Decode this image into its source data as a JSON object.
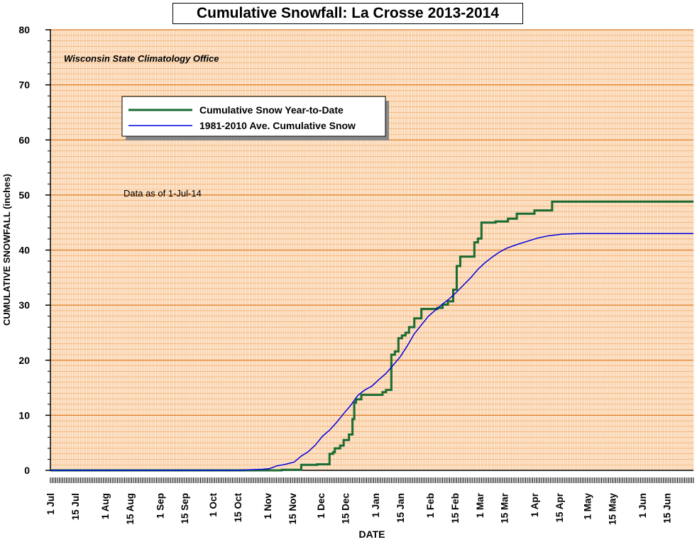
{
  "chart_data": {
    "type": "line",
    "title": "Cumulative Snowfall: La Crosse 2013-2014",
    "subtitle": "Wisconsin State Climatology Office",
    "annotation": "Data as of 1-Jul-14",
    "xlabel": "DATE",
    "ylabel": "CUMULATIVE SNOWFALL (inches)",
    "ylim": [
      0,
      80
    ],
    "y_ticks": [
      0,
      10,
      20,
      30,
      40,
      50,
      60,
      70,
      80
    ],
    "x_range_days": [
      0,
      364
    ],
    "x_ticks": [
      {
        "day": 0,
        "label": "1 Jul"
      },
      {
        "day": 14,
        "label": "15 Jul"
      },
      {
        "day": 31,
        "label": "1 Aug"
      },
      {
        "day": 45,
        "label": "15 Aug"
      },
      {
        "day": 62,
        "label": "1 Sep"
      },
      {
        "day": 76,
        "label": "15 Sep"
      },
      {
        "day": 92,
        "label": "1 Oct"
      },
      {
        "day": 106,
        "label": "15 Oct"
      },
      {
        "day": 123,
        "label": "1 Nov"
      },
      {
        "day": 137,
        "label": "15 Nov"
      },
      {
        "day": 153,
        "label": "1 Dec"
      },
      {
        "day": 167,
        "label": "15 Dec"
      },
      {
        "day": 184,
        "label": "1 Jan"
      },
      {
        "day": 198,
        "label": "15 Jan"
      },
      {
        "day": 215,
        "label": "1 Feb"
      },
      {
        "day": 229,
        "label": "15 Feb"
      },
      {
        "day": 243,
        "label": "1 Mar"
      },
      {
        "day": 257,
        "label": "15 Mar"
      },
      {
        "day": 274,
        "label": "1 Apr"
      },
      {
        "day": 288,
        "label": "15 Apr"
      },
      {
        "day": 304,
        "label": "1 May"
      },
      {
        "day": 318,
        "label": "15 May"
      },
      {
        "day": 335,
        "label": "1 Jun"
      },
      {
        "day": 349,
        "label": "15 Jun"
      }
    ],
    "grid": true,
    "legend_position": "upper-left",
    "series": [
      {
        "name": "Cumulative Snow Year-to-Date",
        "color": "#1a6b32",
        "step": true,
        "points": [
          [
            0,
            0
          ],
          [
            131,
            0
          ],
          [
            131,
            0.1
          ],
          [
            142,
            0.1
          ],
          [
            142,
            1
          ],
          [
            151,
            1
          ],
          [
            151,
            1.1
          ],
          [
            158,
            1.1
          ],
          [
            158,
            3
          ],
          [
            160,
            3
          ],
          [
            160,
            3.3
          ],
          [
            161,
            3.3
          ],
          [
            161,
            4
          ],
          [
            164,
            4
          ],
          [
            164,
            4.5
          ],
          [
            166,
            4.5
          ],
          [
            166,
            5.5
          ],
          [
            169,
            5.5
          ],
          [
            169,
            6.5
          ],
          [
            171,
            6.5
          ],
          [
            171,
            9.3
          ],
          [
            172,
            9.3
          ],
          [
            172,
            12.3
          ],
          [
            173,
            12.3
          ],
          [
            173,
            12.9
          ],
          [
            176,
            12.9
          ],
          [
            176,
            13.7
          ],
          [
            188,
            13.7
          ],
          [
            188,
            14.2
          ],
          [
            190,
            14.2
          ],
          [
            190,
            14.6
          ],
          [
            193,
            14.6
          ],
          [
            193,
            21
          ],
          [
            195,
            21
          ],
          [
            195,
            21.6
          ],
          [
            197,
            21.6
          ],
          [
            197,
            24
          ],
          [
            199,
            24
          ],
          [
            199,
            24.5
          ],
          [
            201,
            24.5
          ],
          [
            201,
            25
          ],
          [
            203,
            25
          ],
          [
            203,
            26
          ],
          [
            206,
            26
          ],
          [
            206,
            27.6
          ],
          [
            210,
            27.6
          ],
          [
            210,
            29.3
          ],
          [
            219,
            29.3
          ],
          [
            219,
            29.5
          ],
          [
            222,
            29.5
          ],
          [
            222,
            30.1
          ],
          [
            225,
            30.1
          ],
          [
            225,
            30.7
          ],
          [
            228,
            30.7
          ],
          [
            228,
            32.8
          ],
          [
            230,
            32.8
          ],
          [
            230,
            37.1
          ],
          [
            232,
            37.1
          ],
          [
            232,
            38.8
          ],
          [
            240,
            38.8
          ],
          [
            240,
            41.4
          ],
          [
            242,
            41.4
          ],
          [
            242,
            42.1
          ],
          [
            244,
            42.1
          ],
          [
            244,
            45
          ],
          [
            252,
            45
          ],
          [
            252,
            45.2
          ],
          [
            259,
            45.2
          ],
          [
            259,
            45.7
          ],
          [
            264,
            45.7
          ],
          [
            264,
            46.6
          ],
          [
            274,
            46.6
          ],
          [
            274,
            47.2
          ],
          [
            284,
            47.2
          ],
          [
            284,
            48.8
          ],
          [
            364,
            48.8
          ]
        ]
      },
      {
        "name": "1981-2010 Ave. Cumulative Snow",
        "color": "#0000dd",
        "step": false,
        "points": [
          [
            0,
            0
          ],
          [
            105,
            0
          ],
          [
            112,
            0.1
          ],
          [
            120,
            0.2
          ],
          [
            124,
            0.3
          ],
          [
            128,
            0.8
          ],
          [
            133,
            1.1
          ],
          [
            138,
            1.5
          ],
          [
            142,
            2.6
          ],
          [
            146,
            3.4
          ],
          [
            150,
            4.6
          ],
          [
            154,
            6.2
          ],
          [
            158,
            7.3
          ],
          [
            162,
            8.7
          ],
          [
            166,
            10.3
          ],
          [
            170,
            11.8
          ],
          [
            174,
            13.6
          ],
          [
            178,
            14.6
          ],
          [
            182,
            15.3
          ],
          [
            186,
            16.5
          ],
          [
            190,
            17.6
          ],
          [
            194,
            19.1
          ],
          [
            198,
            20.6
          ],
          [
            202,
            22.6
          ],
          [
            206,
            24.8
          ],
          [
            210,
            26.4
          ],
          [
            214,
            28
          ],
          [
            218,
            29.1
          ],
          [
            222,
            30.2
          ],
          [
            226,
            31.2
          ],
          [
            230,
            32.4
          ],
          [
            234,
            33.7
          ],
          [
            238,
            35
          ],
          [
            242,
            36.5
          ],
          [
            246,
            37.7
          ],
          [
            250,
            38.7
          ],
          [
            254,
            39.6
          ],
          [
            258,
            40.3
          ],
          [
            264,
            41
          ],
          [
            270,
            41.6
          ],
          [
            276,
            42.2
          ],
          [
            282,
            42.6
          ],
          [
            290,
            42.9
          ],
          [
            300,
            43
          ],
          [
            364,
            43
          ]
        ]
      }
    ]
  }
}
